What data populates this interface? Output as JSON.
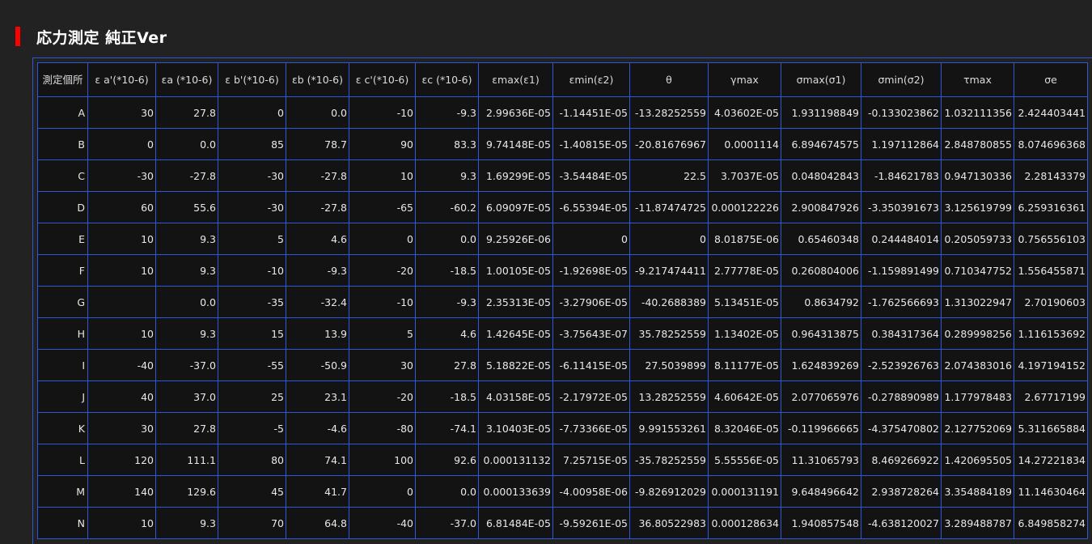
{
  "title": "応力測定 純正Ver",
  "colors": {
    "background": "#222222",
    "cell_background": "#131313",
    "grid_border": "#2d59d8",
    "title_marker": "#ff0000",
    "text": "#e8e8e8"
  },
  "table": {
    "headers": [
      "測定個所",
      "ε a'(*10-6)",
      "εa (*10-6)",
      "ε b'(*10-6)",
      "εb (*10-6)",
      "ε c'(*10-6)",
      "εc (*10-6)",
      "εmax(ε1)",
      "εmin(ε2)",
      "θ",
      "γmax",
      "σmax(σ1)",
      "σmin(σ2)",
      "τmax",
      "σe"
    ],
    "rows": [
      [
        "A",
        "30",
        "27.8",
        "0",
        "0.0",
        "-10",
        "-9.3",
        "2.99636E-05",
        "-1.14451E-05",
        "-13.28252559",
        "4.03602E-05",
        "1.931198849",
        "-0.133023862",
        "1.032111356",
        "2.424403441"
      ],
      [
        "B",
        "0",
        "0.0",
        "85",
        "78.7",
        "90",
        "83.3",
        "9.74148E-05",
        "-1.40815E-05",
        "-20.81676967",
        "0.0001114",
        "6.894674575",
        "1.197112864",
        "2.848780855",
        "8.074696368"
      ],
      [
        "C",
        "-30",
        "-27.8",
        "-30",
        "-27.8",
        "10",
        "9.3",
        "1.69299E-05",
        "-3.54484E-05",
        "22.5",
        "3.7037E-05",
        "0.048042843",
        "-1.84621783",
        "0.947130336",
        "2.28143379"
      ],
      [
        "D",
        "60",
        "55.6",
        "-30",
        "-27.8",
        "-65",
        "-60.2",
        "6.09097E-05",
        "-6.55394E-05",
        "-11.87474725",
        "0.000122226",
        "2.900847926",
        "-3.350391673",
        "3.125619799",
        "6.259316361"
      ],
      [
        "E",
        "10",
        "9.3",
        "5",
        "4.6",
        "0",
        "0.0",
        "9.25926E-06",
        "0",
        "0",
        "8.01875E-06",
        "0.65460348",
        "0.244484014",
        "0.205059733",
        "0.756556103"
      ],
      [
        "F",
        "10",
        "9.3",
        "-10",
        "-9.3",
        "-20",
        "-18.5",
        "1.00105E-05",
        "-1.92698E-05",
        "-9.217474411",
        "2.77778E-05",
        "0.260804006",
        "-1.159891499",
        "0.710347752",
        "1.556455871"
      ],
      [
        "G",
        "",
        "0.0",
        "-35",
        "-32.4",
        "-10",
        "-9.3",
        "2.35313E-05",
        "-3.27906E-05",
        "-40.2688389",
        "5.13451E-05",
        "0.8634792",
        "-1.762566693",
        "1.313022947",
        "2.70190603"
      ],
      [
        "H",
        "10",
        "9.3",
        "15",
        "13.9",
        "5",
        "4.6",
        "1.42645E-05",
        "-3.75643E-07",
        "35.78252559",
        "1.13402E-05",
        "0.964313875",
        "0.384317364",
        "0.289998256",
        "1.116153692"
      ],
      [
        "I",
        "-40",
        "-37.0",
        "-55",
        "-50.9",
        "30",
        "27.8",
        "5.18822E-05",
        "-6.11415E-05",
        "27.5039899",
        "8.11177E-05",
        "1.624839269",
        "-2.523926763",
        "2.074383016",
        "4.197194152"
      ],
      [
        "J",
        "40",
        "37.0",
        "25",
        "23.1",
        "-20",
        "-18.5",
        "4.03158E-05",
        "-2.17972E-05",
        "13.28252559",
        "4.60642E-05",
        "2.077065976",
        "-0.278890989",
        "1.177978483",
        "2.67717199"
      ],
      [
        "K",
        "30",
        "27.8",
        "-5",
        "-4.6",
        "-80",
        "-74.1",
        "3.10403E-05",
        "-7.73366E-05",
        "9.991553261",
        "8.32046E-05",
        "-0.119966665",
        "-4.375470802",
        "2.127752069",
        "5.311665884"
      ],
      [
        "L",
        "120",
        "111.1",
        "80",
        "74.1",
        "100",
        "92.6",
        "0.000131132",
        "7.25715E-05",
        "-35.78252559",
        "5.55556E-05",
        "11.31065793",
        "8.469266922",
        "1.420695505",
        "14.27221834"
      ],
      [
        "M",
        "140",
        "129.6",
        "45",
        "41.7",
        "0",
        "0.0",
        "0.000133639",
        "-4.00958E-06",
        "-9.826912029",
        "0.000131191",
        "9.648496642",
        "2.938728264",
        "3.354884189",
        "11.14630464"
      ],
      [
        "N",
        "10",
        "9.3",
        "70",
        "64.8",
        "-40",
        "-37.0",
        "6.81484E-05",
        "-9.59261E-05",
        "36.80522983",
        "0.000128634",
        "1.940857548",
        "-4.638120027",
        "3.289488787",
        "6.849858274"
      ]
    ]
  }
}
